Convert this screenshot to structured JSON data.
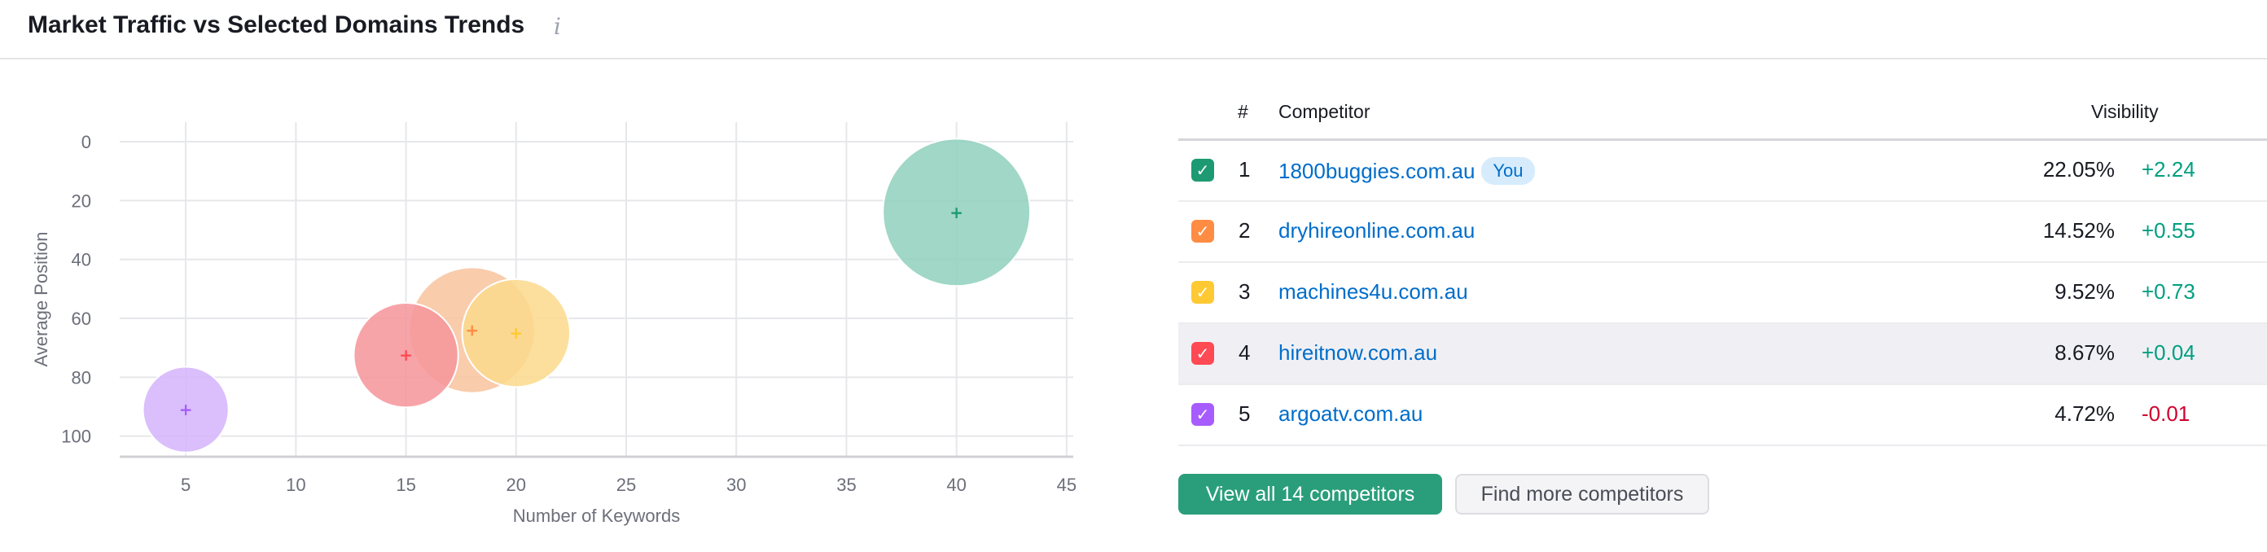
{
  "header": {
    "title": "Market Traffic vs Selected Domains Trends",
    "info_icon": "info-icon"
  },
  "chart_data": {
    "type": "scatter",
    "subtype": "bubble",
    "xlabel": "Number of Keywords",
    "ylabel": "Average Position",
    "xlim": [
      2,
      45.3
    ],
    "ylim": [
      0,
      107
    ],
    "y_reversed": true,
    "xticks": [
      5,
      10,
      15,
      20,
      25,
      30,
      35,
      40,
      45
    ],
    "yticks": [
      0,
      20,
      40,
      60,
      80,
      100
    ],
    "grid": true,
    "points": [
      {
        "domain": "1800buggies.com.au",
        "x": 40,
        "y": 24,
        "size": 22.05,
        "color": "#1d9a72",
        "fill": "#8fd0bc"
      },
      {
        "domain": "dryhireonline.com.au",
        "x": 18,
        "y": 64,
        "size": 14.52,
        "color": "#ff8c43",
        "fill": "#f8c39d"
      },
      {
        "domain": "machines4u.com.au",
        "x": 20,
        "y": 65,
        "size": 9.52,
        "color": "#ffc933",
        "fill": "#fbd98c"
      },
      {
        "domain": "hireitnow.com.au",
        "x": 15,
        "y": 72.5,
        "size": 8.67,
        "color": "#ff4953",
        "fill": "#f6949a"
      },
      {
        "domain": "argoatv.com.au",
        "x": 5,
        "y": 91,
        "size": 4.72,
        "color": "#a75cff",
        "fill": "#d4b4fb"
      }
    ]
  },
  "table": {
    "headers": {
      "rank": "#",
      "competitor": "Competitor",
      "visibility": "Visibility"
    },
    "rows": [
      {
        "rank": "1",
        "domain": "1800buggies.com.au",
        "badge": "You",
        "visibility": "22.05%",
        "change": "+2.24",
        "checked": true,
        "color": "#1d9a72"
      },
      {
        "rank": "2",
        "domain": "dryhireonline.com.au",
        "visibility": "14.52%",
        "change": "+0.55",
        "checked": true,
        "color": "#ff8c43"
      },
      {
        "rank": "3",
        "domain": "machines4u.com.au",
        "visibility": "9.52%",
        "change": "+0.73",
        "checked": true,
        "color": "#ffc933"
      },
      {
        "rank": "4",
        "domain": "hireitnow.com.au",
        "visibility": "8.67%",
        "change": "+0.04",
        "checked": true,
        "color": "#ff4953"
      },
      {
        "rank": "5",
        "domain": "argoatv.com.au",
        "visibility": "4.72%",
        "change": "-0.01",
        "checked": true,
        "color": "#a75cff"
      }
    ]
  },
  "buttons": {
    "view_all": "View all 14 competitors",
    "find_more": "Find more competitors"
  },
  "colors": {
    "positive": "#009f81",
    "negative": "#d1002f",
    "link": "#006dca"
  }
}
